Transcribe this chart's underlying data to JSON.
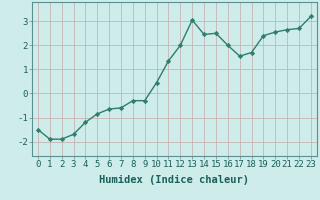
{
  "x": [
    0,
    1,
    2,
    3,
    4,
    5,
    6,
    7,
    8,
    9,
    10,
    11,
    12,
    13,
    14,
    15,
    16,
    17,
    18,
    19,
    20,
    21,
    22,
    23
  ],
  "y": [
    -1.5,
    -1.9,
    -1.9,
    -1.7,
    -1.2,
    -0.85,
    -0.65,
    -0.6,
    -0.3,
    -0.3,
    0.45,
    1.35,
    2.0,
    3.05,
    2.45,
    2.5,
    2.0,
    1.55,
    1.7,
    2.4,
    2.55,
    2.65,
    2.7,
    3.2
  ],
  "line_color": "#2e7d6e",
  "marker": "D",
  "marker_size": 2.2,
  "linewidth": 1.0,
  "bg_color": "#ceecea",
  "grid_color": "#b8d8d5",
  "xlabel": "Humidex (Indice chaleur)",
  "xlabel_fontsize": 7.5,
  "ylabel_ticks": [
    -2,
    -1,
    0,
    1,
    2,
    3
  ],
  "ylim": [
    -2.6,
    3.8
  ],
  "xlim": [
    -0.5,
    23.5
  ],
  "tick_fontsize": 6.5
}
